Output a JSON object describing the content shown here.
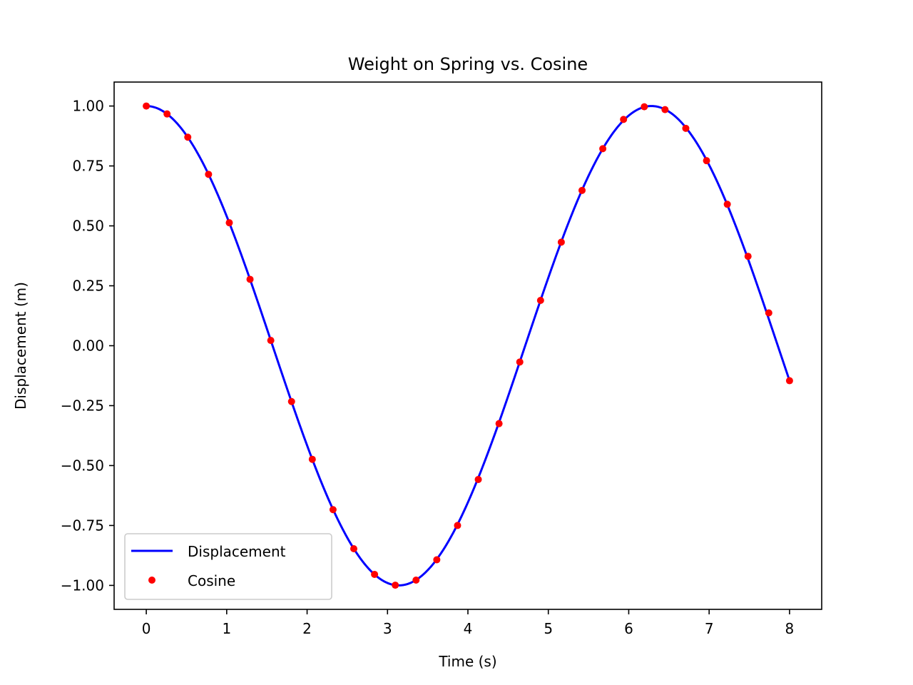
{
  "chart_data": {
    "type": "line",
    "title": "Weight on Spring vs. Cosine",
    "xlabel": "Time (s)",
    "ylabel": "Displacement (m)",
    "xlim": [
      -0.4,
      8.4
    ],
    "ylim": [
      -1.1,
      1.1
    ],
    "xticks": [
      0,
      1,
      2,
      3,
      4,
      5,
      6,
      7,
      8
    ],
    "xtick_labels": [
      "0",
      "1",
      "2",
      "3",
      "4",
      "5",
      "6",
      "7",
      "8"
    ],
    "yticks": [
      1.0,
      0.75,
      0.5,
      0.25,
      0.0,
      -0.25,
      -0.5,
      -0.75,
      -1.0
    ],
    "ytick_labels": [
      "1.00",
      "0.75",
      "0.50",
      "0.25",
      "0.00",
      "−0.25",
      "−0.50",
      "−0.75",
      "−1.00"
    ],
    "grid": false,
    "legend_position": "lower-left",
    "series": [
      {
        "name": "Displacement",
        "kind": "line",
        "color": "#0000ff",
        "x_start": 0,
        "x_end": 8,
        "y_function": "cos(x)"
      },
      {
        "name": "Cosine",
        "kind": "scatter",
        "color": "#ff0000",
        "x": [
          0.0,
          0.2581,
          0.5161,
          0.7742,
          1.0323,
          1.2903,
          1.5484,
          1.8065,
          2.0645,
          2.3226,
          2.5806,
          2.8387,
          3.0968,
          3.3548,
          3.6129,
          3.871,
          4.129,
          4.3871,
          4.6452,
          4.9032,
          5.1613,
          5.4194,
          5.6774,
          5.9355,
          6.1935,
          6.4516,
          6.7097,
          6.9677,
          7.2258,
          7.4839,
          7.7419,
          8.0
        ],
        "y": [
          1.0,
          0.967,
          0.87,
          0.715,
          0.513,
          0.277,
          0.022,
          -0.233,
          -0.474,
          -0.684,
          -0.847,
          -0.954,
          -0.999,
          -0.978,
          -0.893,
          -0.75,
          -0.558,
          -0.325,
          -0.068,
          0.189,
          0.432,
          0.648,
          0.822,
          0.944,
          0.997,
          0.985,
          0.907,
          0.772,
          0.59,
          0.373,
          0.137,
          -0.146
        ]
      }
    ]
  }
}
